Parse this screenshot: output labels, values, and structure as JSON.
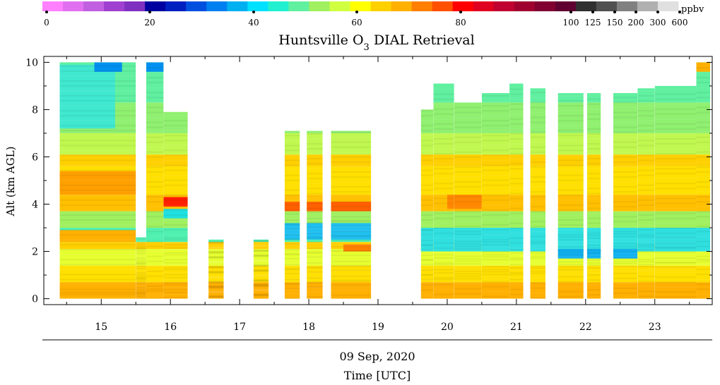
{
  "chart_data": {
    "type": "heatmap",
    "title_prefix": "Huntsville O",
    "title_sub": "3",
    "title_suffix": " DIAL Retrieval",
    "ylabel": "Alt (km AGL)",
    "xlabel_date": "09 Sep, 2020",
    "xlabel": "Time [UTC]",
    "colorbar_unit": "ppbv",
    "colorbar_ticks": [
      "0",
      "20",
      "40",
      "60",
      "80",
      "100",
      "125",
      "150",
      "200",
      "300",
      "600"
    ],
    "colorbar_colors": [
      "#ff80ff",
      "#e070f0",
      "#c060e0",
      "#a040d0",
      "#8030c0",
      "#0000a0",
      "#0020c0",
      "#0050e0",
      "#0080f0",
      "#00b0f0",
      "#00e0ff",
      "#20f0d0",
      "#60f0a0",
      "#a0f060",
      "#d0ff40",
      "#ffff00",
      "#ffd000",
      "#ffb000",
      "#ff8000",
      "#ff5000",
      "#ff0000",
      "#e00020",
      "#c00030",
      "#a00030",
      "#800030",
      "#600030",
      "#303030",
      "#505050",
      "#808080",
      "#b0b0b0",
      "#e0e0e0"
    ],
    "x_ticks": [
      "15",
      "16",
      "17",
      "18",
      "19",
      "20",
      "21",
      "22",
      "23"
    ],
    "x_range": [
      14.17,
      23.83
    ],
    "y_ticks": [
      "0",
      "2",
      "4",
      "6",
      "8",
      "10"
    ],
    "y_range": [
      -0.25,
      10.25
    ],
    "profiles": [
      {
        "start": 14.4,
        "end": 15.5,
        "top": 10.0
      },
      {
        "start": 15.5,
        "end": 15.65,
        "top": 2.6
      },
      {
        "start": 15.65,
        "end": 15.9,
        "top": 10.0
      },
      {
        "start": 15.9,
        "end": 16.25,
        "top": 7.9
      },
      {
        "start": 16.55,
        "end": 16.77,
        "top": 2.5
      },
      {
        "start": 17.2,
        "end": 17.42,
        "top": 2.5
      },
      {
        "start": 17.65,
        "end": 17.87,
        "top": 7.1
      },
      {
        "start": 17.97,
        "end": 18.2,
        "top": 7.1
      },
      {
        "start": 18.32,
        "end": 18.9,
        "top": 7.1
      },
      {
        "start": 19.62,
        "end": 19.8,
        "top": 8.0
      },
      {
        "start": 19.8,
        "end": 20.1,
        "top": 9.1
      },
      {
        "start": 20.1,
        "end": 20.5,
        "top": 8.3
      },
      {
        "start": 20.5,
        "end": 20.9,
        "top": 8.7
      },
      {
        "start": 20.9,
        "end": 21.1,
        "top": 9.1
      },
      {
        "start": 21.2,
        "end": 21.42,
        "top": 8.9
      },
      {
        "start": 21.6,
        "end": 21.97,
        "top": 8.7
      },
      {
        "start": 22.02,
        "end": 22.22,
        "top": 8.7
      },
      {
        "start": 22.4,
        "end": 22.75,
        "top": 8.7
      },
      {
        "start": 22.75,
        "end": 23.0,
        "top": 8.9
      },
      {
        "start": 23.0,
        "end": 23.6,
        "top": 9.0
      },
      {
        "start": 23.6,
        "end": 23.8,
        "top": 10.0
      }
    ],
    "layers": [
      {
        "from": 0.0,
        "to": 0.7,
        "color": "#ffb000"
      },
      {
        "from": 0.7,
        "to": 1.4,
        "color": "#ffe000"
      },
      {
        "from": 1.4,
        "to": 2.1,
        "color": "#e6ff30"
      },
      {
        "from": 2.1,
        "to": 2.4,
        "color": "#ffd000"
      },
      {
        "from": 2.4,
        "to": 3.0,
        "color": "#50f0b0"
      },
      {
        "from": 3.0,
        "to": 3.7,
        "color": "#a0f060"
      },
      {
        "from": 3.7,
        "to": 4.4,
        "color": "#ffc000"
      },
      {
        "from": 4.4,
        "to": 5.6,
        "color": "#ffe000"
      },
      {
        "from": 5.6,
        "to": 6.1,
        "color": "#ffd000"
      },
      {
        "from": 6.1,
        "to": 7.0,
        "color": "#c0f850"
      },
      {
        "from": 7.0,
        "to": 8.3,
        "color": "#90f070"
      },
      {
        "from": 8.3,
        "to": 10.1,
        "color": "#60f0a0"
      }
    ],
    "features": [
      {
        "x0": 14.4,
        "x1": 15.5,
        "y0": 4.4,
        "y1": 5.4,
        "color": "#ffa000"
      },
      {
        "x0": 14.4,
        "x1": 15.5,
        "y0": 2.4,
        "y1": 2.9,
        "color": "#ffb000"
      },
      {
        "x0": 14.4,
        "x1": 15.2,
        "y0": 7.2,
        "y1": 9.9,
        "color": "#40e8d0"
      },
      {
        "x0": 14.9,
        "x1": 15.3,
        "y0": 9.6,
        "y1": 10.0,
        "color": "#0090f0"
      },
      {
        "x0": 15.9,
        "x1": 16.25,
        "y0": 3.9,
        "y1": 4.3,
        "color": "#ff2000"
      },
      {
        "x0": 15.9,
        "x1": 16.25,
        "y0": 3.4,
        "y1": 3.8,
        "color": "#20e0e0"
      },
      {
        "x0": 15.65,
        "x1": 15.9,
        "y0": 9.6,
        "y1": 10.0,
        "color": "#0090f0"
      },
      {
        "x0": 17.65,
        "x1": 18.9,
        "y0": 3.7,
        "y1": 4.1,
        "color": "#ff6000"
      },
      {
        "x0": 17.65,
        "x1": 18.9,
        "y0": 2.5,
        "y1": 3.2,
        "color": "#20c0f0"
      },
      {
        "x0": 18.5,
        "x1": 18.9,
        "y0": 2.0,
        "y1": 2.3,
        "color": "#ff8000"
      },
      {
        "x0": 19.62,
        "x1": 23.8,
        "y0": 2.0,
        "y1": 3.0,
        "color": "#30e0e0"
      },
      {
        "x0": 21.6,
        "x1": 22.75,
        "y0": 1.7,
        "y1": 2.1,
        "color": "#10b0f0"
      },
      {
        "x0": 20.0,
        "x1": 20.5,
        "y0": 3.8,
        "y1": 4.4,
        "color": "#ff8800"
      },
      {
        "x0": 23.6,
        "x1": 23.8,
        "y0": 9.6,
        "y1": 10.0,
        "color": "#ffb000"
      }
    ]
  }
}
